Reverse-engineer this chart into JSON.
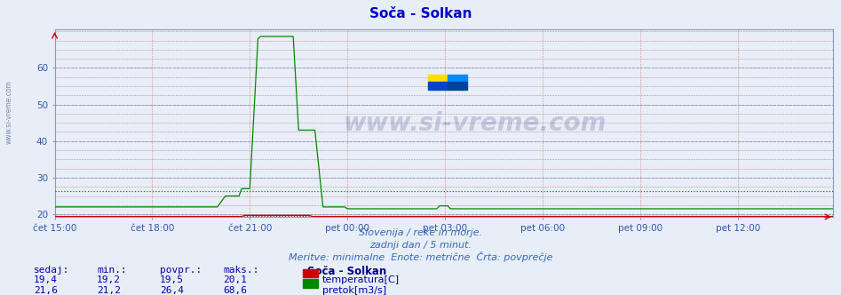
{
  "title": "Soča - Solkan",
  "title_color": "#0000cc",
  "bg_color": "#e8eef8",
  "plot_bg_color": "#e8eef8",
  "x_tick_labels": [
    "čet 15:00",
    "čet 18:00",
    "čet 21:00",
    "pet 00:00",
    "pet 03:00",
    "pet 06:00",
    "pet 09:00",
    "pet 12:00"
  ],
  "x_tick_positions": [
    0,
    36,
    72,
    108,
    144,
    180,
    216,
    252
  ],
  "y_ticks": [
    20,
    30,
    40,
    50,
    60
  ],
  "ylim": [
    19.3,
    70.5
  ],
  "xlim": [
    0,
    287
  ],
  "temp_color": "#cc0000",
  "flow_color": "#008800",
  "temp_avg": 19.5,
  "flow_avg": 26.4,
  "watermark": "www.si-vreme.com",
  "subtitle1": "Slovenija / reke in morje.",
  "subtitle2": "zadnji dan / 5 minut.",
  "subtitle3": "Meritve: minimalne  Enote: metrične  Črta: povprečje",
  "subtitle_color": "#3366bb",
  "legend_title": "Soča - Solkan",
  "legend_title_color": "#000088",
  "stat_headers": [
    "sedaj:",
    "min.:",
    "povpr.:",
    "maks.:"
  ],
  "stat_temp": [
    "19,4",
    "19,2",
    "19,5",
    "20,1"
  ],
  "stat_flow": [
    "21,6",
    "21,2",
    "26,4",
    "68,6"
  ],
  "stat_label_temp": "temperatura[C]",
  "stat_label_flow": "pretok[m3/s]",
  "stat_color": "#0000aa",
  "tick_color": "#3355aa",
  "grid_red": "#cc8888",
  "grid_blue": "#8899bb",
  "side_label": "www.si-vreme.com"
}
